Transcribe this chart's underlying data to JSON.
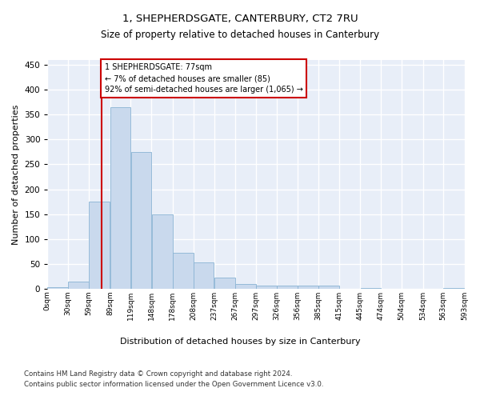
{
  "title": "1, SHEPHERDSGATE, CANTERBURY, CT2 7RU",
  "subtitle": "Size of property relative to detached houses in Canterbury",
  "xlabel": "Distribution of detached houses by size in Canterbury",
  "ylabel": "Number of detached properties",
  "footnote1": "Contains HM Land Registry data © Crown copyright and database right 2024.",
  "footnote2": "Contains public sector information licensed under the Open Government Licence v3.0.",
  "annotation_line1": "1 SHEPHERDSGATE: 77sqm",
  "annotation_line2": "← 7% of detached houses are smaller (85)",
  "annotation_line3": "92% of semi-detached houses are larger (1,065) →",
  "property_sqm": 77,
  "bar_color": "#c9d9ed",
  "bar_edge_color": "#8ab4d4",
  "vline_color": "#cc0000",
  "annotation_box_color": "#cc0000",
  "background_color": "#e8eef8",
  "grid_color": "#ffffff",
  "bin_edges": [
    0,
    29.5,
    59,
    89,
    118.5,
    148,
    178,
    208,
    237,
    267,
    297,
    326,
    356,
    385,
    415,
    445,
    474.5,
    504,
    534,
    563,
    593
  ],
  "bin_labels": [
    "0sqm",
    "30sqm",
    "59sqm",
    "89sqm",
    "119sqm",
    "148sqm",
    "178sqm",
    "208sqm",
    "237sqm",
    "267sqm",
    "297sqm",
    "326sqm",
    "356sqm",
    "385sqm",
    "415sqm",
    "445sqm",
    "474sqm",
    "504sqm",
    "534sqm",
    "563sqm",
    "593sqm"
  ],
  "bar_heights": [
    3,
    15,
    175,
    365,
    275,
    150,
    72,
    53,
    22,
    10,
    6,
    6,
    6,
    6,
    0,
    2,
    0,
    0,
    0,
    2
  ],
  "ylim": [
    0,
    460
  ],
  "yticks": [
    0,
    50,
    100,
    150,
    200,
    250,
    300,
    350,
    400,
    450
  ]
}
